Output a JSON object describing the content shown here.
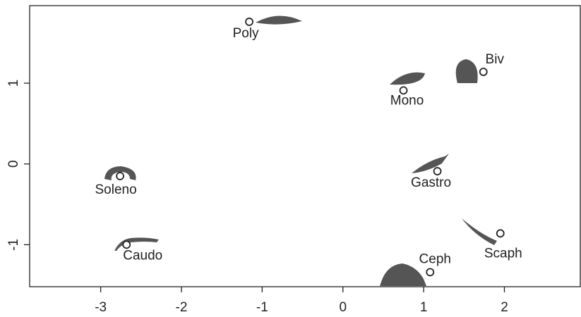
{
  "chart_data": {
    "type": "scatter",
    "points": [
      {
        "label": "Poly",
        "x": -1.16,
        "y": 1.76
      },
      {
        "label": "Biv",
        "x": 1.74,
        "y": 1.14
      },
      {
        "label": "Mono",
        "x": 0.75,
        "y": 0.91
      },
      {
        "label": "Gastro",
        "x": 1.17,
        "y": -0.09
      },
      {
        "label": "Soleno",
        "x": -2.76,
        "y": -0.15
      },
      {
        "label": "Caudo",
        "x": -2.68,
        "y": -1.0
      },
      {
        "label": "Scaph",
        "x": 1.95,
        "y": -0.86
      },
      {
        "label": "Ceph",
        "x": 1.08,
        "y": -1.34
      }
    ],
    "xlim": [
      -3.88,
      2.94
    ],
    "xticks": [
      -3,
      -2,
      -1,
      0,
      1,
      2
    ],
    "ylim": [
      -1.52,
      1.96
    ],
    "yticks": [
      -1,
      0,
      1
    ],
    "color": "#222222"
  }
}
